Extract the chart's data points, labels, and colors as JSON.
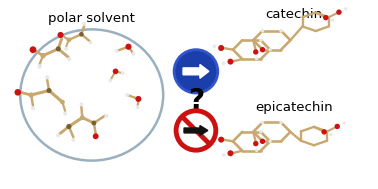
{
  "background_color": "#ffffff",
  "left_label": "polar solvent",
  "right_top_label": "catechin",
  "right_bottom_label": "epicatechin",
  "circle_color": "#9ab0be",
  "circle_linewidth": 1.8,
  "blue_color": "#1a3faa",
  "no_sign_color": "#cc1111",
  "bond_color": "#c8a870",
  "bond_dark": "#7a6030",
  "red_atom": "#cc1111",
  "white_atom": "#e8e8e8",
  "gray_atom": "#555555",
  "font_size_main": 9.5,
  "font_size_q": 20
}
